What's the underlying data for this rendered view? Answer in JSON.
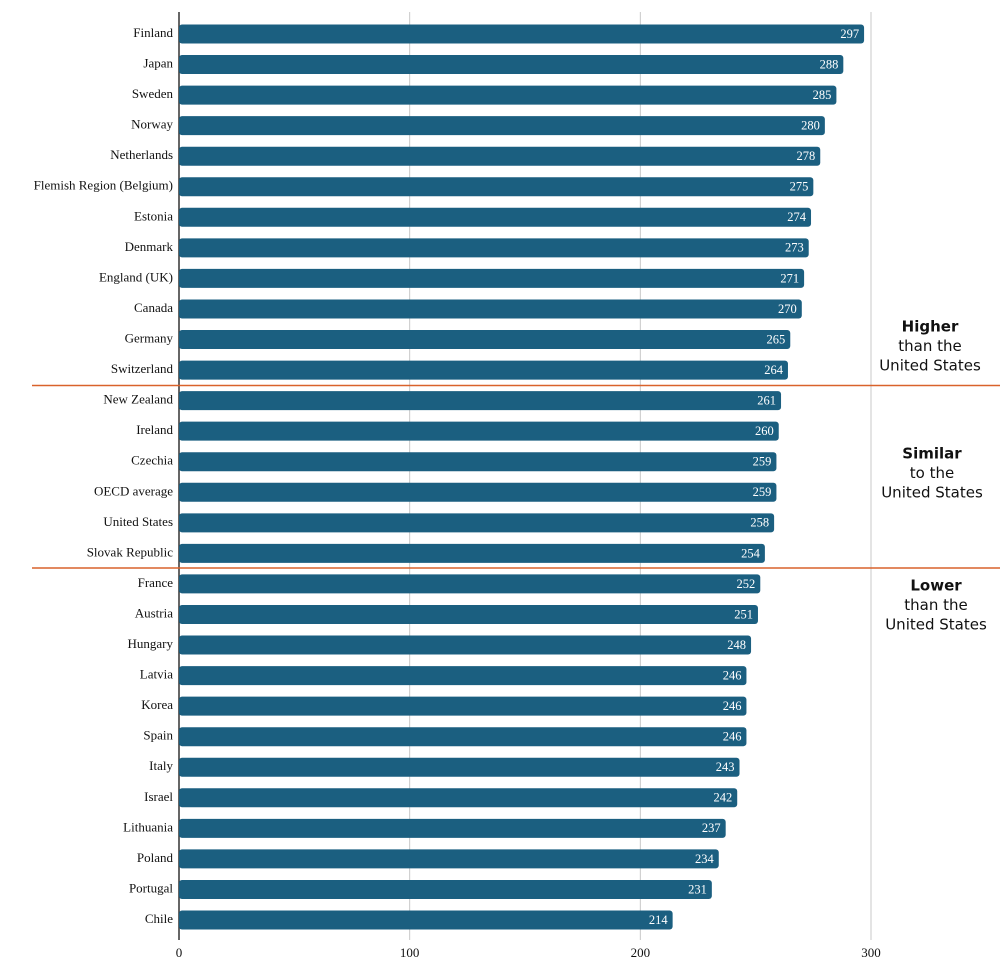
{
  "chart_data": {
    "type": "bar",
    "orientation": "horizontal",
    "categories": [
      "Finland",
      "Japan",
      "Sweden",
      "Norway",
      "Netherlands",
      "Flemish Region (Belgium)",
      "Estonia",
      "Denmark",
      "England (UK)",
      "Canada",
      "Germany",
      "Switzerland",
      "New Zealand",
      "Ireland",
      "Czechia",
      "OECD average",
      "United States",
      "Slovak Republic",
      "France",
      "Austria",
      "Hungary",
      "Latvia",
      "Korea",
      "Spain",
      "Italy",
      "Israel",
      "Lithuania",
      "Poland",
      "Portugal",
      "Chile"
    ],
    "values": [
      297,
      288,
      285,
      280,
      278,
      275,
      274,
      273,
      271,
      270,
      265,
      264,
      261,
      260,
      259,
      259,
      258,
      254,
      252,
      251,
      248,
      246,
      246,
      246,
      243,
      242,
      237,
      234,
      231,
      214
    ],
    "color": "#1b5f80",
    "xlim": [
      0,
      300
    ],
    "xticks": [
      0,
      100,
      200,
      300
    ],
    "grid": true,
    "groups": [
      {
        "title": "Higher",
        "lines": [
          "than the",
          "United States"
        ]
      },
      {
        "title": "Similar",
        "lines": [
          "to the",
          "United States"
        ]
      },
      {
        "title": "Lower",
        "lines": [
          "than the",
          "United States"
        ]
      }
    ],
    "separator_color": "#d9622b"
  }
}
